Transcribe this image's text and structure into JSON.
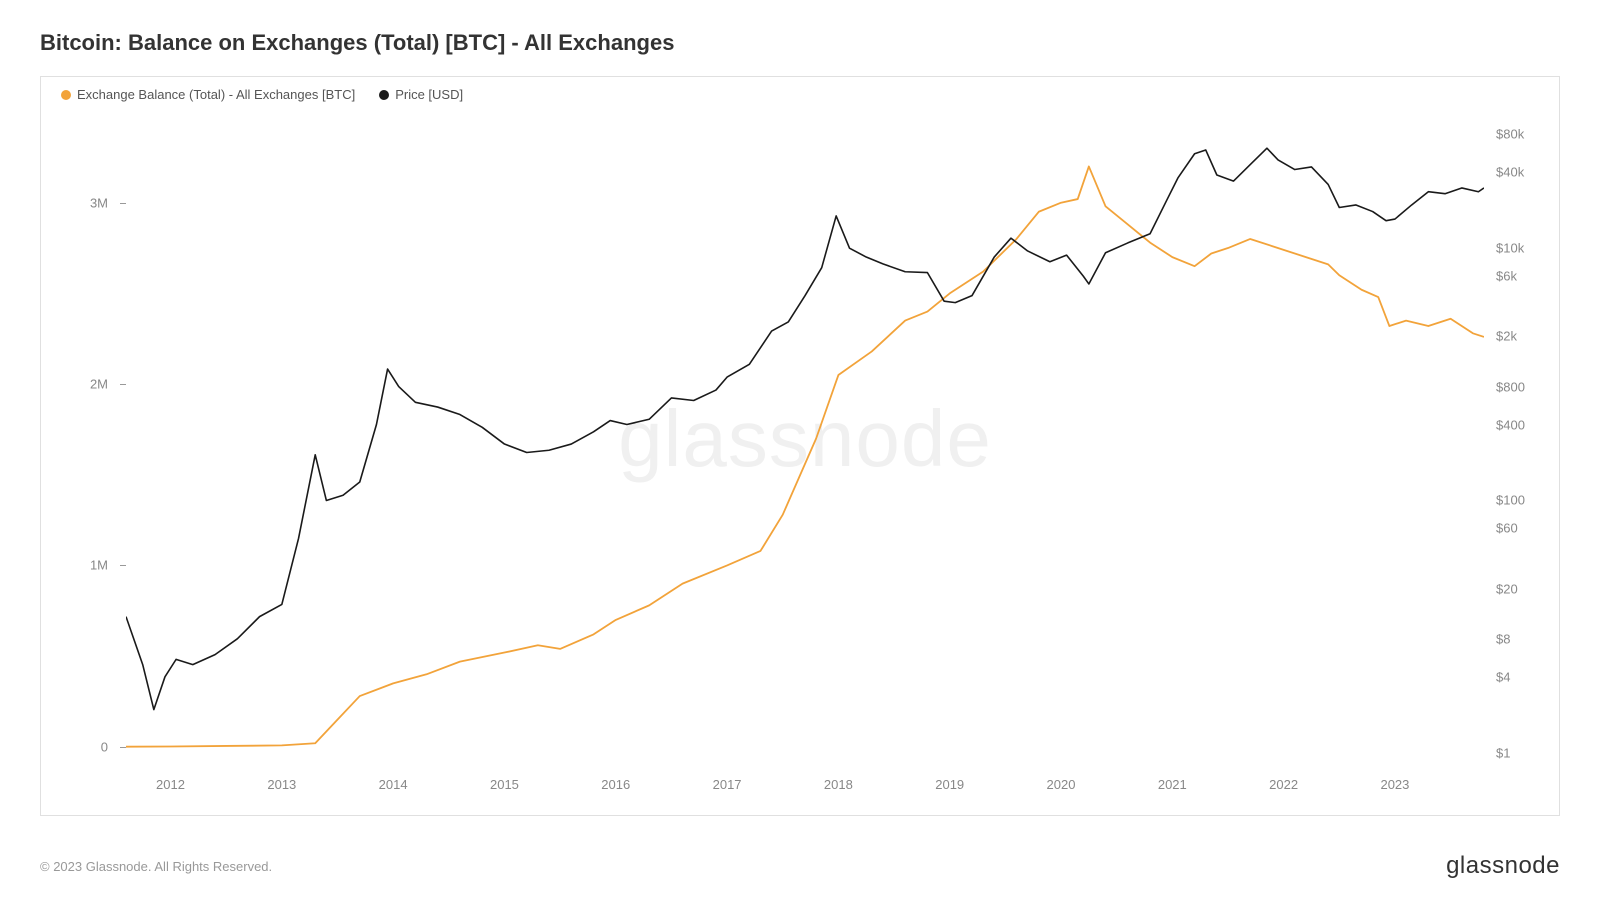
{
  "title": "Bitcoin: Balance on Exchanges (Total) [BTC] - All Exchanges",
  "watermark": "glassnode",
  "copyright": "© 2023 Glassnode. All Rights Reserved.",
  "brand": "glassnode",
  "legend": {
    "series1": {
      "label": "Exchange Balance (Total) - All Exchanges [BTC]",
      "color": "#f2a33a"
    },
    "series2": {
      "label": "Price [USD]",
      "color": "#1a1a1a"
    }
  },
  "chart": {
    "type": "line-dual-axis",
    "background_color": "#ffffff",
    "border_color": "#e0e0e0",
    "x_axis": {
      "range": [
        2011.6,
        2023.8
      ],
      "ticks": [
        2012,
        2013,
        2014,
        2015,
        2016,
        2017,
        2018,
        2019,
        2020,
        2021,
        2022,
        2023
      ],
      "tick_labels": [
        "2012",
        "2013",
        "2014",
        "2015",
        "2016",
        "2017",
        "2018",
        "2019",
        "2020",
        "2021",
        "2022",
        "2023"
      ]
    },
    "y_left": {
      "scale": "linear",
      "range": [
        -100000,
        3500000
      ],
      "ticks": [
        0,
        1000000,
        2000000,
        3000000
      ],
      "tick_labels": [
        "0",
        "1M",
        "2M",
        "3M"
      ]
    },
    "y_right": {
      "scale": "log",
      "range": [
        0.8,
        120000
      ],
      "ticks": [
        1,
        4,
        8,
        20,
        60,
        100,
        400,
        800,
        2000,
        6000,
        10000,
        40000,
        80000
      ],
      "tick_labels": [
        "$1",
        "$4",
        "$8",
        "$20",
        "$60",
        "$100",
        "$400",
        "$800",
        "$2k",
        "$6k",
        "$10k",
        "$40k",
        "$80k"
      ]
    },
    "series_balance": {
      "color": "#f2a33a",
      "line_width": 1.8,
      "data": [
        [
          2011.6,
          1000
        ],
        [
          2012.0,
          2000
        ],
        [
          2012.5,
          5000
        ],
        [
          2013.0,
          8000
        ],
        [
          2013.3,
          20000
        ],
        [
          2013.5,
          150000
        ],
        [
          2013.7,
          280000
        ],
        [
          2014.0,
          350000
        ],
        [
          2014.3,
          400000
        ],
        [
          2014.6,
          470000
        ],
        [
          2015.0,
          520000
        ],
        [
          2015.3,
          560000
        ],
        [
          2015.5,
          540000
        ],
        [
          2015.8,
          620000
        ],
        [
          2016.0,
          700000
        ],
        [
          2016.3,
          780000
        ],
        [
          2016.6,
          900000
        ],
        [
          2017.0,
          1000000
        ],
        [
          2017.3,
          1080000
        ],
        [
          2017.5,
          1280000
        ],
        [
          2017.8,
          1700000
        ],
        [
          2018.0,
          2050000
        ],
        [
          2018.3,
          2180000
        ],
        [
          2018.6,
          2350000
        ],
        [
          2018.8,
          2400000
        ],
        [
          2019.0,
          2500000
        ],
        [
          2019.3,
          2620000
        ],
        [
          2019.6,
          2800000
        ],
        [
          2019.8,
          2950000
        ],
        [
          2020.0,
          3000000
        ],
        [
          2020.15,
          3020000
        ],
        [
          2020.25,
          3200000
        ],
        [
          2020.4,
          2980000
        ],
        [
          2020.6,
          2880000
        ],
        [
          2020.8,
          2780000
        ],
        [
          2021.0,
          2700000
        ],
        [
          2021.2,
          2650000
        ],
        [
          2021.35,
          2720000
        ],
        [
          2021.5,
          2750000
        ],
        [
          2021.7,
          2800000
        ],
        [
          2021.9,
          2760000
        ],
        [
          2022.0,
          2740000
        ],
        [
          2022.2,
          2700000
        ],
        [
          2022.4,
          2660000
        ],
        [
          2022.5,
          2600000
        ],
        [
          2022.7,
          2520000
        ],
        [
          2022.85,
          2480000
        ],
        [
          2022.95,
          2320000
        ],
        [
          2023.1,
          2350000
        ],
        [
          2023.3,
          2320000
        ],
        [
          2023.5,
          2360000
        ],
        [
          2023.7,
          2280000
        ],
        [
          2023.8,
          2260000
        ]
      ]
    },
    "series_price": {
      "color": "#1a1a1a",
      "line_width": 1.6,
      "data": [
        [
          2011.6,
          12
        ],
        [
          2011.75,
          5
        ],
        [
          2011.85,
          2.2
        ],
        [
          2011.95,
          4
        ],
        [
          2012.05,
          5.5
        ],
        [
          2012.2,
          5
        ],
        [
          2012.4,
          6
        ],
        [
          2012.6,
          8
        ],
        [
          2012.8,
          12
        ],
        [
          2013.0,
          15
        ],
        [
          2013.15,
          50
        ],
        [
          2013.3,
          230
        ],
        [
          2013.4,
          100
        ],
        [
          2013.55,
          110
        ],
        [
          2013.7,
          140
        ],
        [
          2013.85,
          400
        ],
        [
          2013.95,
          1100
        ],
        [
          2014.05,
          800
        ],
        [
          2014.2,
          600
        ],
        [
          2014.4,
          550
        ],
        [
          2014.6,
          480
        ],
        [
          2014.8,
          380
        ],
        [
          2015.0,
          280
        ],
        [
          2015.2,
          240
        ],
        [
          2015.4,
          250
        ],
        [
          2015.6,
          280
        ],
        [
          2015.8,
          350
        ],
        [
          2015.95,
          430
        ],
        [
          2016.1,
          400
        ],
        [
          2016.3,
          440
        ],
        [
          2016.5,
          650
        ],
        [
          2016.7,
          620
        ],
        [
          2016.9,
          750
        ],
        [
          2017.0,
          950
        ],
        [
          2017.2,
          1200
        ],
        [
          2017.4,
          2200
        ],
        [
          2017.55,
          2600
        ],
        [
          2017.7,
          4200
        ],
        [
          2017.85,
          7000
        ],
        [
          2017.98,
          18000
        ],
        [
          2018.1,
          10000
        ],
        [
          2018.25,
          8500
        ],
        [
          2018.4,
          7500
        ],
        [
          2018.6,
          6500
        ],
        [
          2018.8,
          6400
        ],
        [
          2018.95,
          3800
        ],
        [
          2019.05,
          3700
        ],
        [
          2019.2,
          4200
        ],
        [
          2019.4,
          8500
        ],
        [
          2019.55,
          12000
        ],
        [
          2019.7,
          9500
        ],
        [
          2019.9,
          7800
        ],
        [
          2020.05,
          8800
        ],
        [
          2020.2,
          6000
        ],
        [
          2020.25,
          5200
        ],
        [
          2020.4,
          9200
        ],
        [
          2020.6,
          11000
        ],
        [
          2020.8,
          13000
        ],
        [
          2020.95,
          24000
        ],
        [
          2021.05,
          36000
        ],
        [
          2021.2,
          56000
        ],
        [
          2021.3,
          60000
        ],
        [
          2021.4,
          38000
        ],
        [
          2021.55,
          34000
        ],
        [
          2021.7,
          46000
        ],
        [
          2021.85,
          62000
        ],
        [
          2021.95,
          50000
        ],
        [
          2022.1,
          42000
        ],
        [
          2022.25,
          44000
        ],
        [
          2022.4,
          32000
        ],
        [
          2022.5,
          21000
        ],
        [
          2022.65,
          22000
        ],
        [
          2022.8,
          19500
        ],
        [
          2022.92,
          16500
        ],
        [
          2023.0,
          17000
        ],
        [
          2023.15,
          22000
        ],
        [
          2023.3,
          28000
        ],
        [
          2023.45,
          27000
        ],
        [
          2023.6,
          30000
        ],
        [
          2023.75,
          28000
        ],
        [
          2023.8,
          30000
        ]
      ]
    }
  }
}
